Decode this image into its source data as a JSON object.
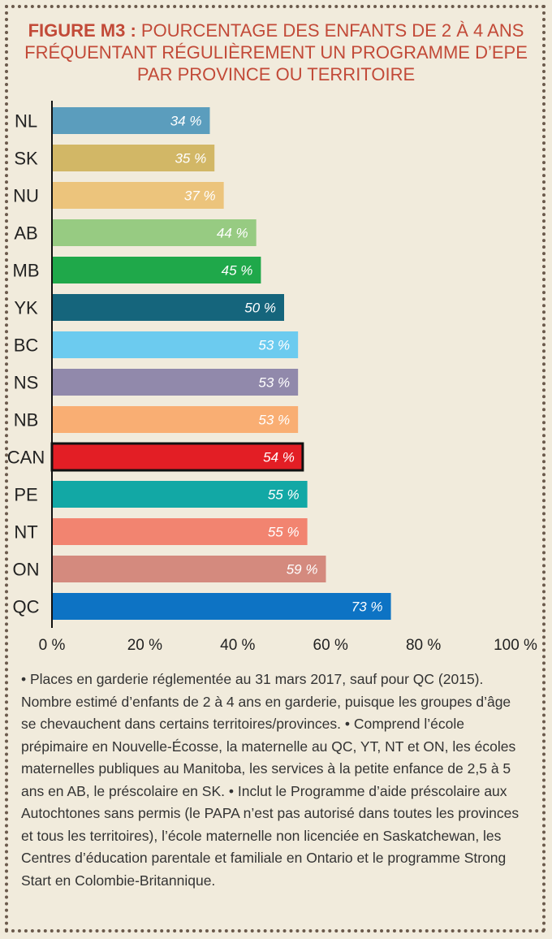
{
  "title": {
    "lead": "FIGURE M3 :",
    "text": " POURCENTAGE DES ENFANTS DE 2 À 4 ANS FRÉQUENTANT RÉGULIÈREMENT UN PROGRAMME D’EPE PAR PROVINCE OU TERRITOIRE"
  },
  "chart_data": {
    "type": "bar",
    "orientation": "horizontal",
    "categories": [
      "NL",
      "SK",
      "NU",
      "AB",
      "MB",
      "YK",
      "BC",
      "NS",
      "NB",
      "CAN",
      "PE",
      "NT",
      "ON",
      "QC"
    ],
    "values": [
      34,
      35,
      37,
      44,
      45,
      50,
      53,
      53,
      53,
      54,
      55,
      55,
      59,
      73
    ],
    "value_labels": [
      "34 %",
      "35 %",
      "37 %",
      "44 %",
      "45 %",
      "50 %",
      "53 %",
      "53 %",
      "53 %",
      "54 %",
      "55 %",
      "55 %",
      "59 %",
      "73 %"
    ],
    "colors": [
      "#5b9dbd",
      "#d2b766",
      "#ecc47c",
      "#97cb82",
      "#1fa84a",
      "#15657c",
      "#6ccbef",
      "#9189ab",
      "#f9ae73",
      "#e31e25",
      "#12a8a5",
      "#f28470",
      "#d48a7e",
      "#0d73c4"
    ],
    "highlight": "CAN",
    "highlight_border": "#111111",
    "xlim": [
      0,
      100
    ],
    "xticks": [
      "0 %",
      "20 %",
      "40 %",
      "60 %",
      "80 %",
      "100 %"
    ],
    "xtick_values": [
      0,
      20,
      40,
      60,
      80,
      100
    ],
    "grid": false,
    "legend": "none"
  },
  "notes": [
    "• Places en garderie réglementée au 31 mars 2017, sauf pour QC (2015). Nombre estimé d’enfants de 2 à 4 ans en garderie, puisque les groupes d’âge se chevauchent dans certains territoires/provinces.",
    "• Comprend l’école prépimaire en Nouvelle-Écosse, la maternelle au QC, YT, NT et ON, les écoles maternelles publiques au Manitoba, les services à la petite enfance de 2,5 à 5 ans en AB, le préscolaire en SK.",
    "• Inclut le Programme d’aide préscolaire aux Autochtones sans permis (le PAPA n’est pas autorisé dans toutes les provinces et tous les territoires), l’école maternelle non licenciée en Saskatchewan, les Centres d’éducation parentale et familiale en Ontario et le programme Strong Start en Colombie-Britannique."
  ]
}
